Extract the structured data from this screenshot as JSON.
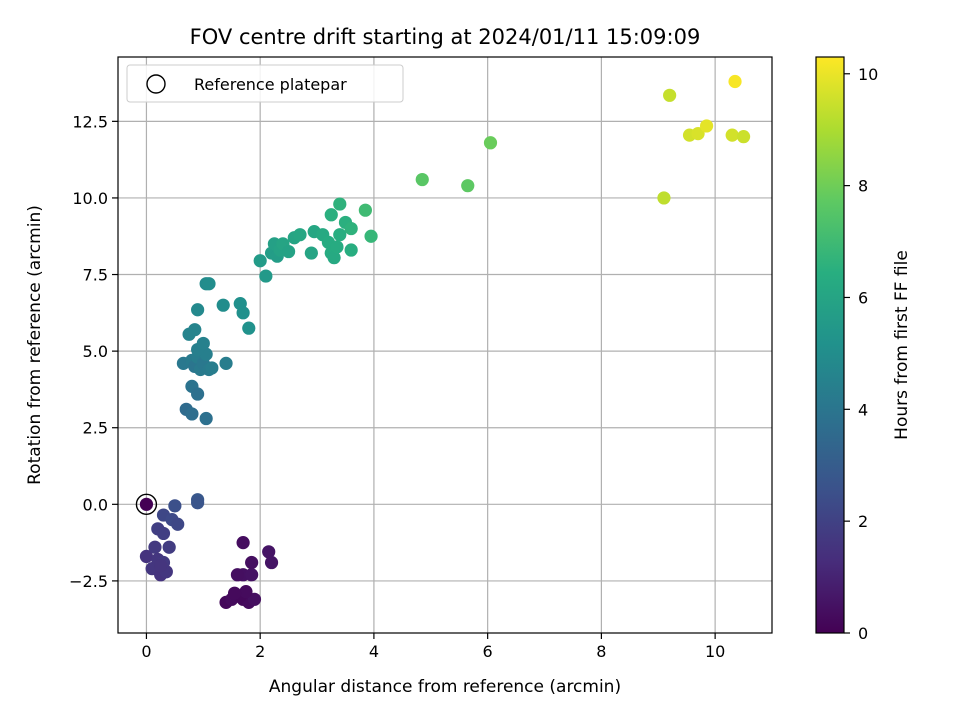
{
  "chart_data": {
    "type": "scatter",
    "title": "FOV centre drift starting at 2024/01/11 15:09:09",
    "xlabel": "Angular distance from reference (arcmin)",
    "ylabel": "Rotation from reference (arcmin)",
    "colorbar_label": "Hours from first FF file",
    "colormap": "viridis",
    "xlim": [
      -0.5,
      11
    ],
    "ylim": [
      -4.2,
      14.6
    ],
    "clim": [
      0,
      10.3
    ],
    "xticks": [
      0,
      2,
      4,
      6,
      8,
      10
    ],
    "xtick_labels": [
      "0",
      "2",
      "4",
      "6",
      "8",
      "10"
    ],
    "yticks": [
      -2.5,
      0,
      2.5,
      5,
      7.5,
      10,
      12.5
    ],
    "ytick_labels": [
      "−2.5",
      "0.0",
      "2.5",
      "5.0",
      "7.5",
      "10.0",
      "12.5"
    ],
    "cticks": [
      0,
      2,
      4,
      6,
      8,
      10
    ],
    "ctick_labels": [
      "0",
      "2",
      "4",
      "6",
      "8",
      "10"
    ],
    "grid": true,
    "legend": {
      "location": "top-left",
      "entries": [
        {
          "label": "Reference platepar",
          "marker": "open-circle"
        }
      ]
    },
    "reference_point": {
      "x": 0,
      "y": 0,
      "c": 0.0
    },
    "points": [
      {
        "x": 1.4,
        "y": -3.2,
        "c": 0.2
      },
      {
        "x": 1.5,
        "y": -3.1,
        "c": 0.3
      },
      {
        "x": 1.7,
        "y": -3.1,
        "c": 0.2
      },
      {
        "x": 1.8,
        "y": -3.2,
        "c": 0.3
      },
      {
        "x": 1.9,
        "y": -3.1,
        "c": 0.4
      },
      {
        "x": 1.65,
        "y": -3.0,
        "c": 0.2
      },
      {
        "x": 1.75,
        "y": -2.85,
        "c": 0.3
      },
      {
        "x": 1.55,
        "y": -2.9,
        "c": 0.25
      },
      {
        "x": 1.7,
        "y": -2.3,
        "c": 0.45
      },
      {
        "x": 1.6,
        "y": -2.3,
        "c": 0.4
      },
      {
        "x": 1.85,
        "y": -2.3,
        "c": 0.5
      },
      {
        "x": 1.85,
        "y": -1.9,
        "c": 0.4
      },
      {
        "x": 2.15,
        "y": -1.55,
        "c": 0.55
      },
      {
        "x": 2.2,
        "y": -1.9,
        "c": 0.55
      },
      {
        "x": 1.7,
        "y": -1.25,
        "c": 0.35
      },
      {
        "x": 0.0,
        "y": -1.7,
        "c": 1.5
      },
      {
        "x": 0.1,
        "y": -2.1,
        "c": 1.6
      },
      {
        "x": 0.15,
        "y": -1.4,
        "c": 1.7
      },
      {
        "x": 0.2,
        "y": -1.8,
        "c": 1.6
      },
      {
        "x": 0.25,
        "y": -2.3,
        "c": 1.5
      },
      {
        "x": 0.3,
        "y": -1.9,
        "c": 1.7
      },
      {
        "x": 0.35,
        "y": -2.2,
        "c": 1.6
      },
      {
        "x": 0.4,
        "y": -1.4,
        "c": 1.8
      },
      {
        "x": 0.25,
        "y": -2.0,
        "c": 1.55
      },
      {
        "x": 0.2,
        "y": -0.8,
        "c": 1.9
      },
      {
        "x": 0.3,
        "y": -0.95,
        "c": 1.9
      },
      {
        "x": 0.3,
        "y": -0.35,
        "c": 2.2
      },
      {
        "x": 0.45,
        "y": -0.5,
        "c": 2.3
      },
      {
        "x": 0.55,
        "y": -0.65,
        "c": 2.2
      },
      {
        "x": 0.5,
        "y": -0.05,
        "c": 2.5
      },
      {
        "x": 0.9,
        "y": 0.15,
        "c": 2.8
      },
      {
        "x": 0.9,
        "y": 0.05,
        "c": 2.7
      },
      {
        "x": 0.7,
        "y": 3.1,
        "c": 3.6
      },
      {
        "x": 0.8,
        "y": 2.95,
        "c": 3.7
      },
      {
        "x": 1.05,
        "y": 2.8,
        "c": 3.8
      },
      {
        "x": 0.8,
        "y": 3.85,
        "c": 3.9
      },
      {
        "x": 0.9,
        "y": 3.6,
        "c": 3.8
      },
      {
        "x": 0.65,
        "y": 4.6,
        "c": 4.1
      },
      {
        "x": 0.8,
        "y": 4.7,
        "c": 4.2
      },
      {
        "x": 0.85,
        "y": 4.5,
        "c": 4.0
      },
      {
        "x": 0.9,
        "y": 4.8,
        "c": 4.3
      },
      {
        "x": 0.95,
        "y": 4.4,
        "c": 4.2
      },
      {
        "x": 1.0,
        "y": 4.6,
        "c": 4.1
      },
      {
        "x": 1.05,
        "y": 4.9,
        "c": 4.4
      },
      {
        "x": 1.1,
        "y": 4.4,
        "c": 4.2
      },
      {
        "x": 0.9,
        "y": 5.05,
        "c": 4.4
      },
      {
        "x": 1.0,
        "y": 5.25,
        "c": 4.5
      },
      {
        "x": 1.15,
        "y": 4.45,
        "c": 4.3
      },
      {
        "x": 1.4,
        "y": 4.6,
        "c": 4.3
      },
      {
        "x": 0.85,
        "y": 5.7,
        "c": 4.6
      },
      {
        "x": 0.75,
        "y": 5.55,
        "c": 4.6
      },
      {
        "x": 0.9,
        "y": 6.35,
        "c": 4.8
      },
      {
        "x": 1.05,
        "y": 7.2,
        "c": 4.9
      },
      {
        "x": 1.1,
        "y": 7.2,
        "c": 5.0
      },
      {
        "x": 1.35,
        "y": 6.5,
        "c": 5.0
      },
      {
        "x": 1.65,
        "y": 6.55,
        "c": 5.1
      },
      {
        "x": 1.7,
        "y": 6.25,
        "c": 5.1
      },
      {
        "x": 1.8,
        "y": 5.75,
        "c": 5.2
      },
      {
        "x": 2.0,
        "y": 7.95,
        "c": 5.6
      },
      {
        "x": 2.1,
        "y": 7.45,
        "c": 5.5
      },
      {
        "x": 2.2,
        "y": 8.2,
        "c": 5.7
      },
      {
        "x": 2.25,
        "y": 8.5,
        "c": 5.8
      },
      {
        "x": 2.3,
        "y": 8.1,
        "c": 5.7
      },
      {
        "x": 2.35,
        "y": 8.3,
        "c": 5.9
      },
      {
        "x": 2.4,
        "y": 8.5,
        "c": 6.0
      },
      {
        "x": 2.5,
        "y": 8.25,
        "c": 5.9
      },
      {
        "x": 2.6,
        "y": 8.7,
        "c": 6.0
      },
      {
        "x": 2.7,
        "y": 8.8,
        "c": 6.1
      },
      {
        "x": 2.9,
        "y": 8.2,
        "c": 6.0
      },
      {
        "x": 2.95,
        "y": 8.9,
        "c": 6.1
      },
      {
        "x": 3.1,
        "y": 8.8,
        "c": 6.2
      },
      {
        "x": 3.2,
        "y": 8.55,
        "c": 6.3
      },
      {
        "x": 3.25,
        "y": 8.2,
        "c": 6.3
      },
      {
        "x": 3.3,
        "y": 8.05,
        "c": 6.2
      },
      {
        "x": 3.35,
        "y": 8.4,
        "c": 6.3
      },
      {
        "x": 3.4,
        "y": 8.8,
        "c": 6.4
      },
      {
        "x": 3.25,
        "y": 9.45,
        "c": 6.5
      },
      {
        "x": 3.4,
        "y": 9.8,
        "c": 6.6
      },
      {
        "x": 3.5,
        "y": 9.2,
        "c": 6.5
      },
      {
        "x": 3.6,
        "y": 9.0,
        "c": 6.6
      },
      {
        "x": 3.6,
        "y": 8.3,
        "c": 6.4
      },
      {
        "x": 3.85,
        "y": 9.6,
        "c": 7.0
      },
      {
        "x": 3.95,
        "y": 8.75,
        "c": 6.8
      },
      {
        "x": 4.85,
        "y": 10.6,
        "c": 7.6
      },
      {
        "x": 5.65,
        "y": 10.4,
        "c": 7.7
      },
      {
        "x": 6.05,
        "y": 11.8,
        "c": 7.9
      },
      {
        "x": 9.1,
        "y": 10.0,
        "c": 9.3
      },
      {
        "x": 9.2,
        "y": 13.35,
        "c": 9.4
      },
      {
        "x": 9.55,
        "y": 12.05,
        "c": 9.6
      },
      {
        "x": 9.7,
        "y": 12.1,
        "c": 9.7
      },
      {
        "x": 9.85,
        "y": 12.35,
        "c": 9.9
      },
      {
        "x": 10.3,
        "y": 12.05,
        "c": 9.6
      },
      {
        "x": 10.35,
        "y": 13.8,
        "c": 10.2
      },
      {
        "x": 10.5,
        "y": 12.0,
        "c": 9.5
      }
    ]
  }
}
